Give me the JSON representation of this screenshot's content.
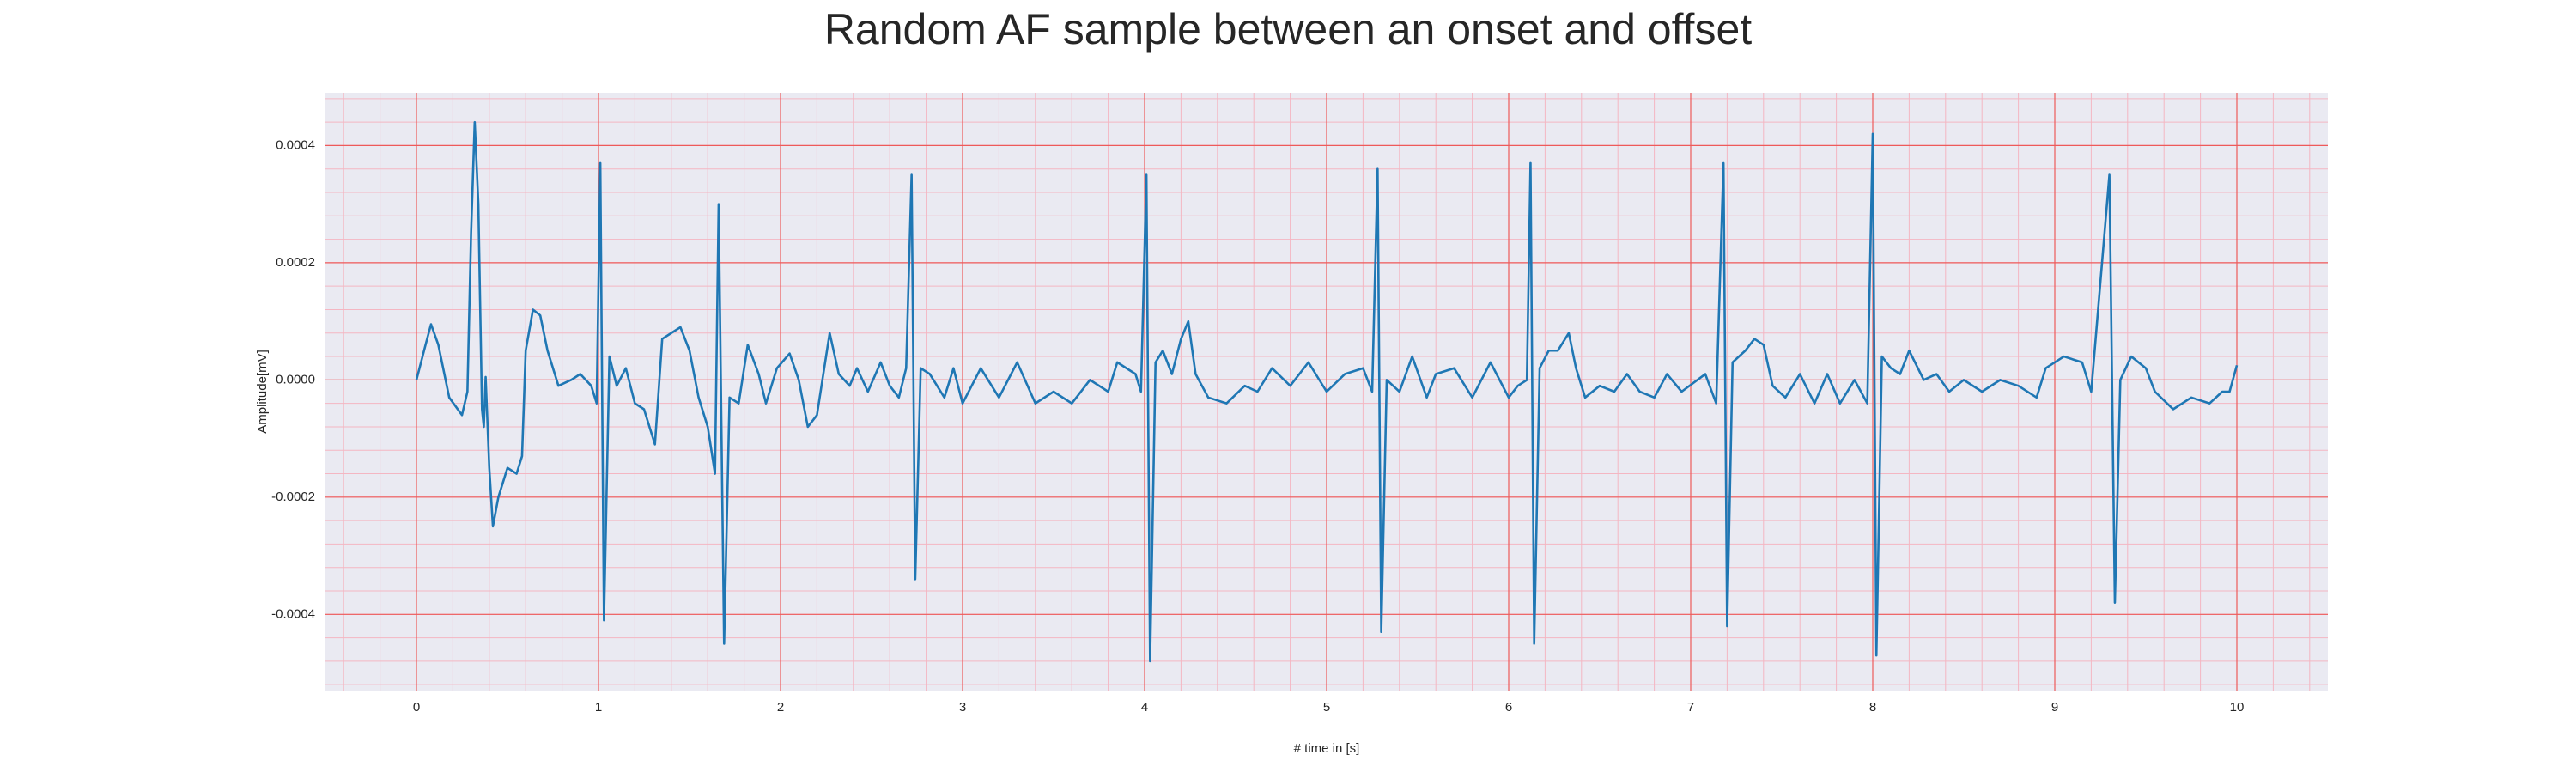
{
  "chart_data": {
    "type": "line",
    "title": "Random AF sample between an onset and offset",
    "xlabel": "# time in [s]",
    "ylabel": "Amplitude[mV]",
    "color": "#1f77b4",
    "grid": true,
    "minor_grid": true,
    "xlim": [
      -0.5,
      10.5
    ],
    "ylim": [
      -0.00053,
      0.00049
    ],
    "xticks": [
      0,
      1,
      2,
      3,
      4,
      5,
      6,
      7,
      8,
      9,
      10
    ],
    "yticks": [
      -0.0004,
      -0.0002,
      {
        "value": 0,
        "label": "0.0000"
      },
      0.0002,
      0.0004
    ],
    "x": [
      0,
      0.05,
      0.08,
      0.12,
      0.18,
      0.25,
      0.28,
      0.3,
      0.32,
      0.34,
      0.36,
      0.37,
      0.38,
      0.4,
      0.42,
      0.45,
      0.5,
      0.55,
      0.58,
      0.6,
      0.64,
      0.68,
      0.72,
      0.78,
      0.85,
      0.9,
      0.96,
      0.99,
      1.01,
      1.03,
      1.06,
      1.1,
      1.15,
      1.2,
      1.25,
      1.31,
      1.35,
      1.4,
      1.45,
      1.5,
      1.55,
      1.6,
      1.64,
      1.66,
      1.69,
      1.72,
      1.77,
      1.82,
      1.88,
      1.92,
      1.98,
      2.05,
      2.1,
      2.15,
      2.2,
      2.27,
      2.32,
      2.38,
      2.42,
      2.48,
      2.55,
      2.6,
      2.65,
      2.69,
      2.72,
      2.74,
      2.77,
      2.82,
      2.9,
      2.95,
      3.0,
      3.1,
      3.2,
      3.3,
      3.4,
      3.5,
      3.6,
      3.7,
      3.8,
      3.85,
      3.95,
      3.98,
      4.01,
      4.03,
      4.06,
      4.1,
      4.15,
      4.2,
      4.24,
      4.28,
      4.35,
      4.45,
      4.55,
      4.62,
      4.7,
      4.8,
      4.9,
      5.0,
      5.1,
      5.2,
      5.25,
      5.28,
      5.3,
      5.33,
      5.4,
      5.47,
      5.55,
      5.6,
      5.7,
      5.8,
      5.9,
      6.0,
      6.05,
      6.1,
      6.12,
      6.14,
      6.17,
      6.22,
      6.27,
      6.33,
      6.37,
      6.42,
      6.5,
      6.58,
      6.65,
      6.72,
      6.8,
      6.87,
      6.95,
      7.08,
      7.14,
      7.18,
      7.2,
      7.23,
      7.3,
      7.35,
      7.4,
      7.45,
      7.52,
      7.6,
      7.68,
      7.75,
      7.82,
      7.9,
      7.97,
      8.0,
      8.02,
      8.05,
      8.1,
      8.15,
      8.2,
      8.28,
      8.35,
      8.42,
      8.5,
      8.6,
      8.7,
      8.8,
      8.9,
      8.95,
      9.05,
      9.15,
      9.2,
      9.3,
      9.33,
      9.36,
      9.42,
      9.5,
      9.55,
      9.65,
      9.75,
      9.85,
      9.92,
      9.96,
      10.0
    ],
    "values": [
      0,
      6e-05,
      9.5e-05,
      6e-05,
      -3e-05,
      -6e-05,
      -2e-05,
      0.00025,
      0.00044,
      0.0003,
      -5e-05,
      -8e-05,
      5e-06,
      -0.00015,
      -0.00025,
      -0.0002,
      -0.00015,
      -0.00016,
      -0.00013,
      5e-05,
      0.00012,
      0.00011,
      5e-05,
      -1e-05,
      0,
      1e-05,
      -1e-05,
      -4e-05,
      0.00037,
      -0.00041,
      4e-05,
      -1e-05,
      2e-05,
      -4e-05,
      -5e-05,
      -0.00011,
      7e-05,
      8e-05,
      9e-05,
      5e-05,
      -3e-05,
      -8e-05,
      -0.00016,
      0.0003,
      -0.00045,
      -3e-05,
      -4e-05,
      6e-05,
      1e-05,
      -4e-05,
      2e-05,
      4.5e-05,
      0,
      -8e-05,
      -6e-05,
      8e-05,
      1e-05,
      -1e-05,
      2e-05,
      -2e-05,
      3e-05,
      -1e-05,
      -3e-05,
      2e-05,
      0.00035,
      -0.00034,
      2e-05,
      1e-05,
      -3e-05,
      2e-05,
      -4e-05,
      2e-05,
      -3e-05,
      3e-05,
      -4e-05,
      -2e-05,
      -4e-05,
      0,
      -2e-05,
      3e-05,
      1e-05,
      -2e-05,
      0.00035,
      -0.00048,
      3e-05,
      5e-05,
      1e-05,
      7e-05,
      0.0001,
      1e-05,
      -3e-05,
      -4e-05,
      -1e-05,
      -2e-05,
      2e-05,
      -1e-05,
      3e-05,
      -2e-05,
      1e-05,
      2e-05,
      -2e-05,
      0.00036,
      -0.00043,
      0,
      -2e-05,
      4e-05,
      -3e-05,
      1e-05,
      2e-05,
      -3e-05,
      3e-05,
      -3e-05,
      -1e-05,
      0,
      0.00037,
      -0.00045,
      2e-05,
      5e-05,
      5e-05,
      8e-05,
      2e-05,
      -3e-05,
      -1e-05,
      -2e-05,
      1e-05,
      -2e-05,
      -3e-05,
      1e-05,
      -2e-05,
      1e-05,
      -4e-05,
      0.00037,
      -0.00042,
      3e-05,
      5e-05,
      7e-05,
      6e-05,
      -1e-05,
      -3e-05,
      1e-05,
      -4e-05,
      1e-05,
      -4e-05,
      0,
      -4e-05,
      0.00042,
      -0.00047,
      4e-05,
      2e-05,
      1e-05,
      5e-05,
      0,
      1e-05,
      -2e-05,
      0,
      -2e-05,
      0,
      -1e-05,
      -3e-05,
      2e-05,
      4e-05,
      3e-05,
      -2e-05,
      0.00035,
      -0.00038,
      0,
      4e-05,
      2e-05,
      -2e-05,
      -5e-05,
      -3e-05,
      -4e-05,
      -2e-05,
      -2e-05,
      2.5e-05
    ]
  }
}
